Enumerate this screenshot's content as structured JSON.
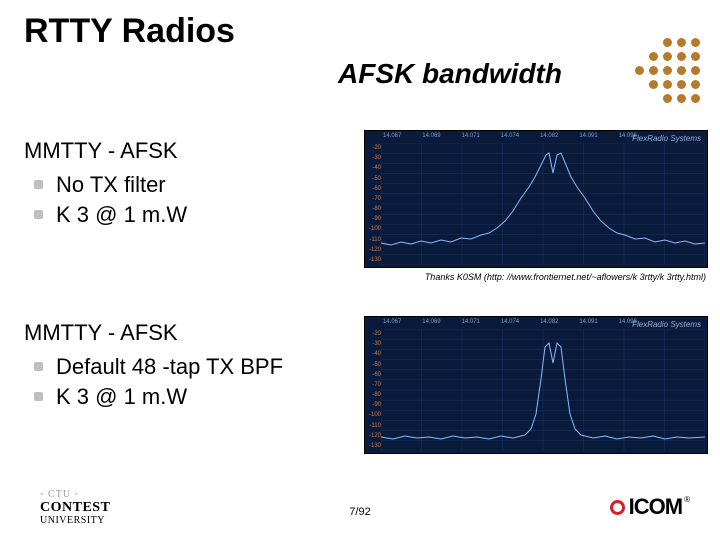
{
  "title": "RTTY Radios",
  "subtitle": "AFSK bandwidth",
  "block1": {
    "heading": "MMTTY - AFSK",
    "items": [
      "No TX filter",
      "K 3 @ 1 m.W"
    ]
  },
  "block2": {
    "heading": "MMTTY - AFSK",
    "items": [
      "Default 48 -tap TX BPF",
      "K 3 @ 1 m.W"
    ]
  },
  "credit": "Thanks K0SM (http: //www.frontiernet.net/~aflowers/k 3rtty/k 3rtty.html)",
  "footer": {
    "ctu": "◦ CTU ◦",
    "contest": "CONTEST",
    "univ": "UNIVERSITY"
  },
  "page": "7/92",
  "logo": {
    "text": "ICOM",
    "reg": "®"
  },
  "dots_pattern": [
    [
      0,
      0,
      1,
      1,
      1
    ],
    [
      0,
      1,
      1,
      1,
      1
    ],
    [
      1,
      1,
      1,
      1,
      1
    ],
    [
      0,
      1,
      1,
      1,
      1
    ],
    [
      0,
      0,
      1,
      1,
      1
    ]
  ],
  "dot_color": "#b77a2a",
  "spectrum": {
    "background": "#0a1a3a",
    "grid_color": "#1a3560",
    "trace_color": "#8fb8ff",
    "brand": "FlexRadio Systems",
    "top_freqs": [
      "14.067",
      "14.069",
      "14.071",
      "14.074",
      "14.082",
      "14.091",
      "14.096"
    ],
    "y_db": [
      "-20",
      "-30",
      "-40",
      "-50",
      "-60",
      "-70",
      "-80",
      "-90",
      "-100",
      "-110",
      "-120",
      "-130"
    ],
    "chart1": {
      "type": "spectrum-line",
      "xlim": [
        0,
        324
      ],
      "ylim_db": [
        -130,
        -20
      ],
      "points": [
        [
          0,
          100
        ],
        [
          10,
          102
        ],
        [
          20,
          99
        ],
        [
          30,
          101
        ],
        [
          40,
          98
        ],
        [
          50,
          100
        ],
        [
          60,
          97
        ],
        [
          70,
          99
        ],
        [
          80,
          95
        ],
        [
          90,
          96
        ],
        [
          100,
          92
        ],
        [
          108,
          90
        ],
        [
          116,
          85
        ],
        [
          124,
          78
        ],
        [
          132,
          68
        ],
        [
          140,
          55
        ],
        [
          148,
          44
        ],
        [
          154,
          34
        ],
        [
          160,
          22
        ],
        [
          165,
          12
        ],
        [
          168,
          10
        ],
        [
          172,
          30
        ],
        [
          176,
          12
        ],
        [
          180,
          10
        ],
        [
          185,
          22
        ],
        [
          190,
          34
        ],
        [
          196,
          44
        ],
        [
          204,
          55
        ],
        [
          212,
          68
        ],
        [
          220,
          78
        ],
        [
          228,
          85
        ],
        [
          236,
          90
        ],
        [
          244,
          92
        ],
        [
          254,
          96
        ],
        [
          264,
          95
        ],
        [
          274,
          99
        ],
        [
          284,
          97
        ],
        [
          294,
          100
        ],
        [
          304,
          98
        ],
        [
          314,
          101
        ],
        [
          324,
          100
        ]
      ]
    },
    "chart2": {
      "type": "spectrum-line",
      "xlim": [
        0,
        324
      ],
      "ylim_db": [
        -130,
        -20
      ],
      "points": [
        [
          0,
          108
        ],
        [
          12,
          110
        ],
        [
          24,
          107
        ],
        [
          36,
          109
        ],
        [
          48,
          108
        ],
        [
          60,
          110
        ],
        [
          72,
          107
        ],
        [
          84,
          109
        ],
        [
          96,
          108
        ],
        [
          108,
          110
        ],
        [
          120,
          107
        ],
        [
          132,
          109
        ],
        [
          144,
          106
        ],
        [
          150,
          100
        ],
        [
          155,
          85
        ],
        [
          160,
          50
        ],
        [
          164,
          18
        ],
        [
          168,
          14
        ],
        [
          172,
          34
        ],
        [
          176,
          14
        ],
        [
          180,
          18
        ],
        [
          184,
          50
        ],
        [
          189,
          85
        ],
        [
          194,
          100
        ],
        [
          200,
          106
        ],
        [
          212,
          109
        ],
        [
          224,
          107
        ],
        [
          236,
          110
        ],
        [
          248,
          108
        ],
        [
          260,
          109
        ],
        [
          272,
          107
        ],
        [
          284,
          110
        ],
        [
          296,
          108
        ],
        [
          308,
          109
        ],
        [
          324,
          108
        ]
      ]
    }
  }
}
